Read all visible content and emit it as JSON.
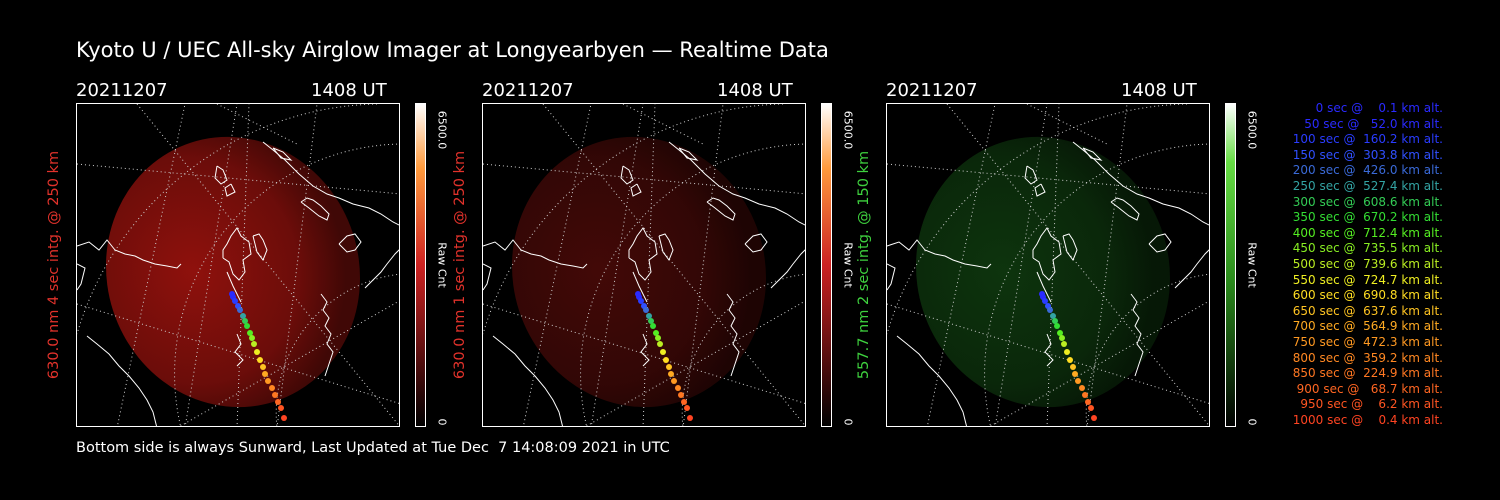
{
  "title": "Kyoto U / UEC All-sky Airglow Imager at Longyearbyen — Realtime Data",
  "footer": "Bottom side is always Sunward, Last Updated at Tue Dec  7 14:08:09 2021 in UTC",
  "panels": [
    {
      "date": "20211207",
      "time": "1408 UT",
      "label": "630.0 nm 4 sec intg. @ 250 km",
      "label_color": "#e2322b",
      "scale_max": "6500.0",
      "scale_min": "0",
      "scale_unit": "Raw Cnt",
      "colormap": "red",
      "glow": {
        "color": "#a8140f",
        "opacity": 0.85
      }
    },
    {
      "date": "20211207",
      "time": "1408 UT",
      "label": "630.0 nm 1 sec intg. @ 250 km",
      "label_color": "#e2322b",
      "scale_max": "6500.0",
      "scale_min": "0",
      "scale_unit": "Raw Cnt",
      "colormap": "red",
      "glow": {
        "color": "#4a0a08",
        "opacity": 0.9
      }
    },
    {
      "date": "20211207",
      "time": "1408 UT",
      "label": "557.7 nm 2 sec intg. @ 150 km",
      "label_color": "#3ed13e",
      "scale_max": "6500.0",
      "scale_min": "0",
      "scale_unit": "Raw Cnt",
      "colormap": "green",
      "glow": {
        "color": "#0f3a0f",
        "opacity": 0.9
      }
    }
  ],
  "track": [
    {
      "sec": 0,
      "alt_km": 0.1,
      "text": "   0 sec @    0.1 km alt.",
      "color": "#2a2aff"
    },
    {
      "sec": 50,
      "alt_km": 52.0,
      "text": "  50 sec @   52.0 km alt.",
      "color": "#2a2aff"
    },
    {
      "sec": 100,
      "alt_km": 160.2,
      "text": " 100 sec @  160.2 km alt.",
      "color": "#2a3cff"
    },
    {
      "sec": 150,
      "alt_km": 303.8,
      "text": " 150 sec @  303.8 km alt.",
      "color": "#3050ff"
    },
    {
      "sec": 200,
      "alt_km": 426.0,
      "text": " 200 sec @  426.0 km alt.",
      "color": "#3a6ad8"
    },
    {
      "sec": 250,
      "alt_km": 527.4,
      "text": " 250 sec @  527.4 km alt.",
      "color": "#33a3a3"
    },
    {
      "sec": 300,
      "alt_km": 608.6,
      "text": " 300 sec @  608.6 km alt.",
      "color": "#33cc55"
    },
    {
      "sec": 350,
      "alt_km": 670.2,
      "text": " 350 sec @  670.2 km alt.",
      "color": "#33dd33"
    },
    {
      "sec": 400,
      "alt_km": 712.4,
      "text": " 400 sec @  712.4 km alt.",
      "color": "#55ee22"
    },
    {
      "sec": 450,
      "alt_km": 735.5,
      "text": " 450 sec @  735.5 km alt.",
      "color": "#88ee22"
    },
    {
      "sec": 500,
      "alt_km": 739.6,
      "text": " 500 sec @  739.6 km alt.",
      "color": "#bbee22"
    },
    {
      "sec": 550,
      "alt_km": 724.7,
      "text": " 550 sec @  724.7 km alt.",
      "color": "#eeee22"
    },
    {
      "sec": 600,
      "alt_km": 690.8,
      "text": " 600 sec @  690.8 km alt.",
      "color": "#ffdd22"
    },
    {
      "sec": 650,
      "alt_km": 637.6,
      "text": " 650 sec @  637.6 km alt.",
      "color": "#ffc422"
    },
    {
      "sec": 700,
      "alt_km": 564.9,
      "text": " 700 sec @  564.9 km alt.",
      "color": "#ffaa22"
    },
    {
      "sec": 750,
      "alt_km": 472.3,
      "text": " 750 sec @  472.3 km alt.",
      "color": "#ff9922"
    },
    {
      "sec": 800,
      "alt_km": 359.2,
      "text": " 800 sec @  359.2 km alt.",
      "color": "#ff8822"
    },
    {
      "sec": 850,
      "alt_km": 224.9,
      "text": " 850 sec @  224.9 km alt.",
      "color": "#ff7722"
    },
    {
      "sec": 900,
      "alt_km": 68.7,
      "text": " 900 sec @   68.7 km alt.",
      "color": "#ff6622"
    },
    {
      "sec": 950,
      "alt_km": 6.2,
      "text": " 950 sec @    6.2 km alt.",
      "color": "#ff5522"
    },
    {
      "sec": 1000,
      "alt_km": 0.4,
      "text": "1000 sec @    0.4 km alt.",
      "color": "#ff4422"
    }
  ]
}
